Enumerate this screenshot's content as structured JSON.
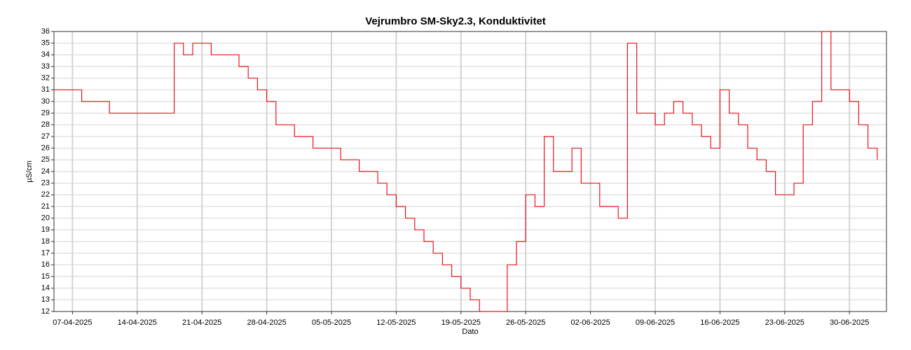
{
  "chart_data": {
    "type": "line",
    "title": "Vejrumbro SM-Sky2.3, Konduktivitet",
    "x_label": "Dato",
    "y_label": "µS/cm",
    "color": "#e8141c",
    "step": true,
    "grid": true,
    "x": [
      "2025-04-05",
      "2025-04-06",
      "2025-04-07",
      "2025-04-08",
      "2025-04-09",
      "2025-04-10",
      "2025-04-11",
      "2025-04-12",
      "2025-04-13",
      "2025-04-14",
      "2025-04-15",
      "2025-04-16",
      "2025-04-17",
      "2025-04-18",
      "2025-04-19",
      "2025-04-20",
      "2025-04-21",
      "2025-04-22",
      "2025-04-23",
      "2025-04-24",
      "2025-04-25",
      "2025-04-26",
      "2025-04-27",
      "2025-04-28",
      "2025-04-29",
      "2025-04-30",
      "2025-05-01",
      "2025-05-02",
      "2025-05-03",
      "2025-05-04",
      "2025-05-05",
      "2025-05-06",
      "2025-05-07",
      "2025-05-08",
      "2025-05-09",
      "2025-05-10",
      "2025-05-11",
      "2025-05-12",
      "2025-05-13",
      "2025-05-14",
      "2025-05-15",
      "2025-05-16",
      "2025-05-17",
      "2025-05-18",
      "2025-05-19",
      "2025-05-20",
      "2025-05-21",
      "2025-05-22",
      "2025-05-23",
      "2025-05-24",
      "2025-05-25",
      "2025-05-26",
      "2025-05-27",
      "2025-05-28",
      "2025-05-29",
      "2025-05-30",
      "2025-05-31",
      "2025-06-01",
      "2025-06-02",
      "2025-06-03",
      "2025-06-04",
      "2025-06-05",
      "2025-06-06",
      "2025-06-07",
      "2025-06-08",
      "2025-06-09",
      "2025-06-10",
      "2025-06-11",
      "2025-06-12",
      "2025-06-13",
      "2025-06-14",
      "2025-06-15",
      "2025-06-16",
      "2025-06-17",
      "2025-06-18",
      "2025-06-19",
      "2025-06-20",
      "2025-06-21",
      "2025-06-22",
      "2025-06-23",
      "2025-06-24",
      "2025-06-25",
      "2025-06-26",
      "2025-06-27",
      "2025-06-28",
      "2025-06-29",
      "2025-06-30",
      "2025-07-01",
      "2025-07-02",
      "2025-07-03"
    ],
    "values": [
      31,
      31,
      31,
      30,
      30,
      30,
      29,
      29,
      29,
      29,
      29,
      29,
      29,
      35,
      34,
      35,
      35,
      34,
      34,
      34,
      33,
      32,
      31,
      30,
      28,
      28,
      27,
      27,
      26,
      26,
      26,
      25,
      25,
      24,
      24,
      23,
      22,
      21,
      20,
      19,
      18,
      17,
      16,
      15,
      14,
      13,
      12,
      12,
      12,
      16,
      18,
      22,
      21,
      27,
      24,
      24,
      26,
      23,
      23,
      21,
      21,
      20,
      35,
      29,
      29,
      28,
      29,
      30,
      29,
      28,
      27,
      26,
      31,
      29,
      28,
      26,
      25,
      24,
      22,
      22,
      23,
      28,
      30,
      36,
      31,
      31,
      30,
      28,
      26,
      25
    ],
    "xlim": [
      "2025-04-05",
      "2025-07-04"
    ],
    "xticks": [
      {
        "value": "2025-04-07",
        "label": "07-04-2025"
      },
      {
        "value": "2025-04-14",
        "label": "14-04-2025"
      },
      {
        "value": "2025-04-21",
        "label": "21-04-2025"
      },
      {
        "value": "2025-04-28",
        "label": "28-04-2025"
      },
      {
        "value": "2025-05-05",
        "label": "05-05-2025"
      },
      {
        "value": "2025-05-12",
        "label": "12-05-2025"
      },
      {
        "value": "2025-05-19",
        "label": "19-05-2025"
      },
      {
        "value": "2025-05-26",
        "label": "26-05-2025"
      },
      {
        "value": "2025-06-02",
        "label": "02-06-2025"
      },
      {
        "value": "2025-06-09",
        "label": "09-06-2025"
      },
      {
        "value": "2025-06-16",
        "label": "16-06-2025"
      },
      {
        "value": "2025-06-23",
        "label": "23-06-2025"
      },
      {
        "value": "2025-06-30",
        "label": "30-06-2025"
      }
    ],
    "ylim": [
      12,
      36
    ],
    "yticks": [
      12,
      13,
      14,
      15,
      16,
      17,
      18,
      19,
      20,
      21,
      22,
      23,
      24,
      25,
      26,
      27,
      28,
      29,
      30,
      31,
      32,
      33,
      34,
      35,
      36
    ]
  }
}
